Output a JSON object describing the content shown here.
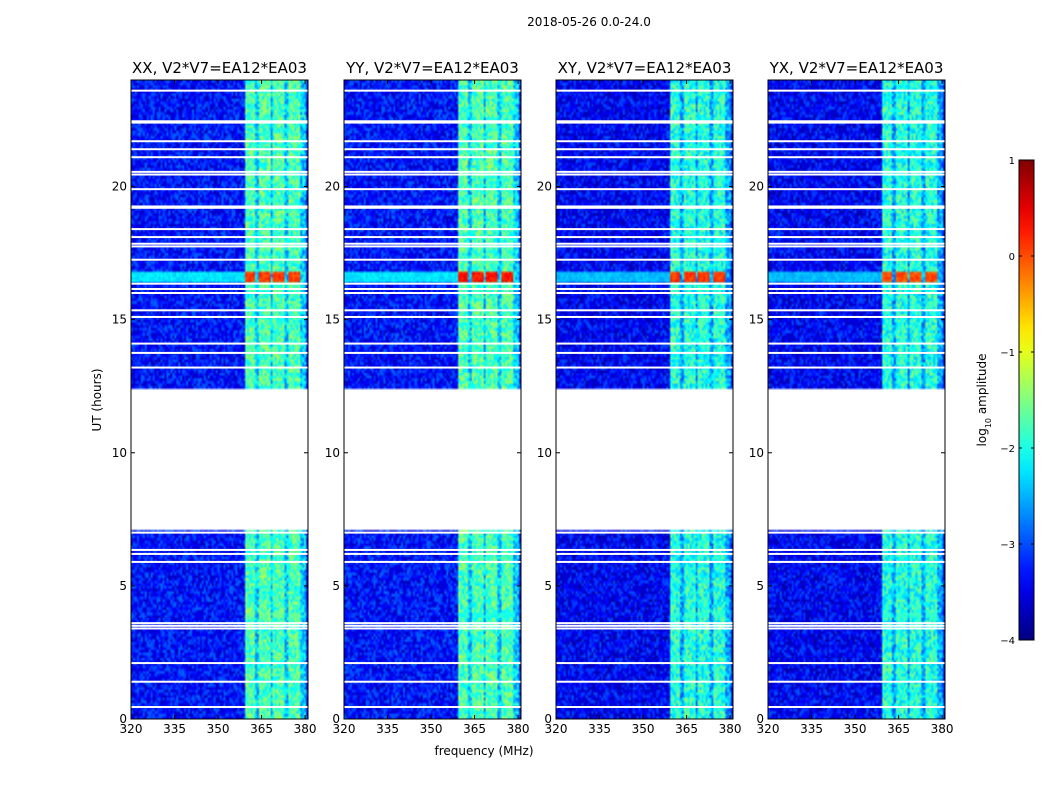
{
  "chart_data": {
    "type": "heatmap",
    "suptitle": "2018-05-26 0.0-24.0",
    "xlabel": "frequency (MHz)",
    "ylabel": "UT (hours)",
    "xlim": [
      320,
      381
    ],
    "ylim": [
      0,
      24
    ],
    "xticks": [
      320,
      335,
      350,
      365,
      380
    ],
    "yticks": [
      0,
      5,
      10,
      15,
      20
    ],
    "gap_hours": [
      7.1,
      12.4
    ],
    "rfi_band_mhz": [
      359,
      380
    ],
    "rfi_subbands_mhz": [
      [
        359,
        363
      ],
      [
        364,
        368
      ],
      [
        369,
        373
      ],
      [
        374,
        378
      ]
    ],
    "flagged_ut_rows": [
      0.45,
      1.4,
      2.1,
      3.4,
      3.5,
      3.6,
      5.9,
      6.2,
      6.35,
      7.0,
      13.2,
      13.75,
      14.1,
      15.1,
      15.35,
      16.0,
      16.15,
      16.35,
      17.25,
      17.75,
      17.85,
      18.1,
      18.4,
      19.2,
      19.25,
      19.9,
      20.45,
      20.55,
      21.1,
      21.4,
      21.7,
      22.4,
      22.45,
      23.6
    ],
    "panels": [
      {
        "title": "XX, V2*V7=EA12*EA03",
        "pol": "XX",
        "background_log10": -3.3,
        "band_log10": -2.0,
        "burst_ut": 16.6,
        "burst_log10": 0.1,
        "weak_ut": 3.9,
        "weak_log10": -1.6
      },
      {
        "title": "YY, V2*V7=EA12*EA03",
        "pol": "YY",
        "background_log10": -3.3,
        "band_log10": -2.0,
        "burst_ut": 16.6,
        "burst_log10": 0.3,
        "weak_ut": 3.9,
        "weak_log10": -2.0
      },
      {
        "title": "XY, V2*V7=EA12*EA03",
        "pol": "XY",
        "background_log10": -3.4,
        "band_log10": -2.2,
        "burst_ut": 16.6,
        "burst_log10": 0.1,
        "weak_ut": 3.9,
        "weak_log10": -1.9
      },
      {
        "title": "YX, V2*V7=EA12*EA03",
        "pol": "YX",
        "background_log10": -3.4,
        "band_log10": -2.2,
        "burst_ut": 16.6,
        "burst_log10": 0.0,
        "weak_ut": 3.9,
        "weak_log10": -1.9
      }
    ],
    "colorbar": {
      "label": "log",
      "label_sub": "10",
      "label_rest": " amplitude",
      "ticks": [
        1,
        0,
        -1,
        -2,
        -3,
        -4
      ],
      "tick_labels": [
        "1",
        "0",
        "−1",
        "−2",
        "−3",
        "−4"
      ],
      "range": [
        -4,
        1
      ],
      "colormap": "jet"
    }
  }
}
